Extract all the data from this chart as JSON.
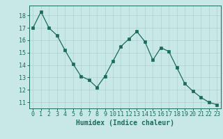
{
  "x": [
    0,
    1,
    2,
    3,
    4,
    5,
    6,
    7,
    8,
    9,
    10,
    11,
    12,
    13,
    14,
    15,
    16,
    17,
    18,
    19,
    20,
    21,
    22,
    23
  ],
  "y": [
    17.0,
    18.3,
    17.0,
    16.4,
    15.2,
    14.1,
    13.1,
    12.8,
    12.2,
    13.1,
    14.3,
    15.5,
    16.1,
    16.7,
    15.9,
    14.4,
    15.4,
    15.1,
    13.8,
    12.5,
    11.9,
    11.4,
    11.0,
    10.8
  ],
  "line_color": "#1a6b5a",
  "marker_color": "#1a6b5a",
  "bg_color": "#c8e8e8",
  "grid_color": "#b0d0d0",
  "xlabel": "Humidex (Indice chaleur)",
  "xlim": [
    -0.5,
    23.5
  ],
  "ylim": [
    10.5,
    18.8
  ],
  "yticks": [
    11,
    12,
    13,
    14,
    15,
    16,
    17,
    18
  ],
  "xticks": [
    0,
    1,
    2,
    3,
    4,
    5,
    6,
    7,
    8,
    9,
    10,
    11,
    12,
    13,
    14,
    15,
    16,
    17,
    18,
    19,
    20,
    21,
    22,
    23
  ],
  "label_fontsize": 7,
  "tick_fontsize": 6
}
